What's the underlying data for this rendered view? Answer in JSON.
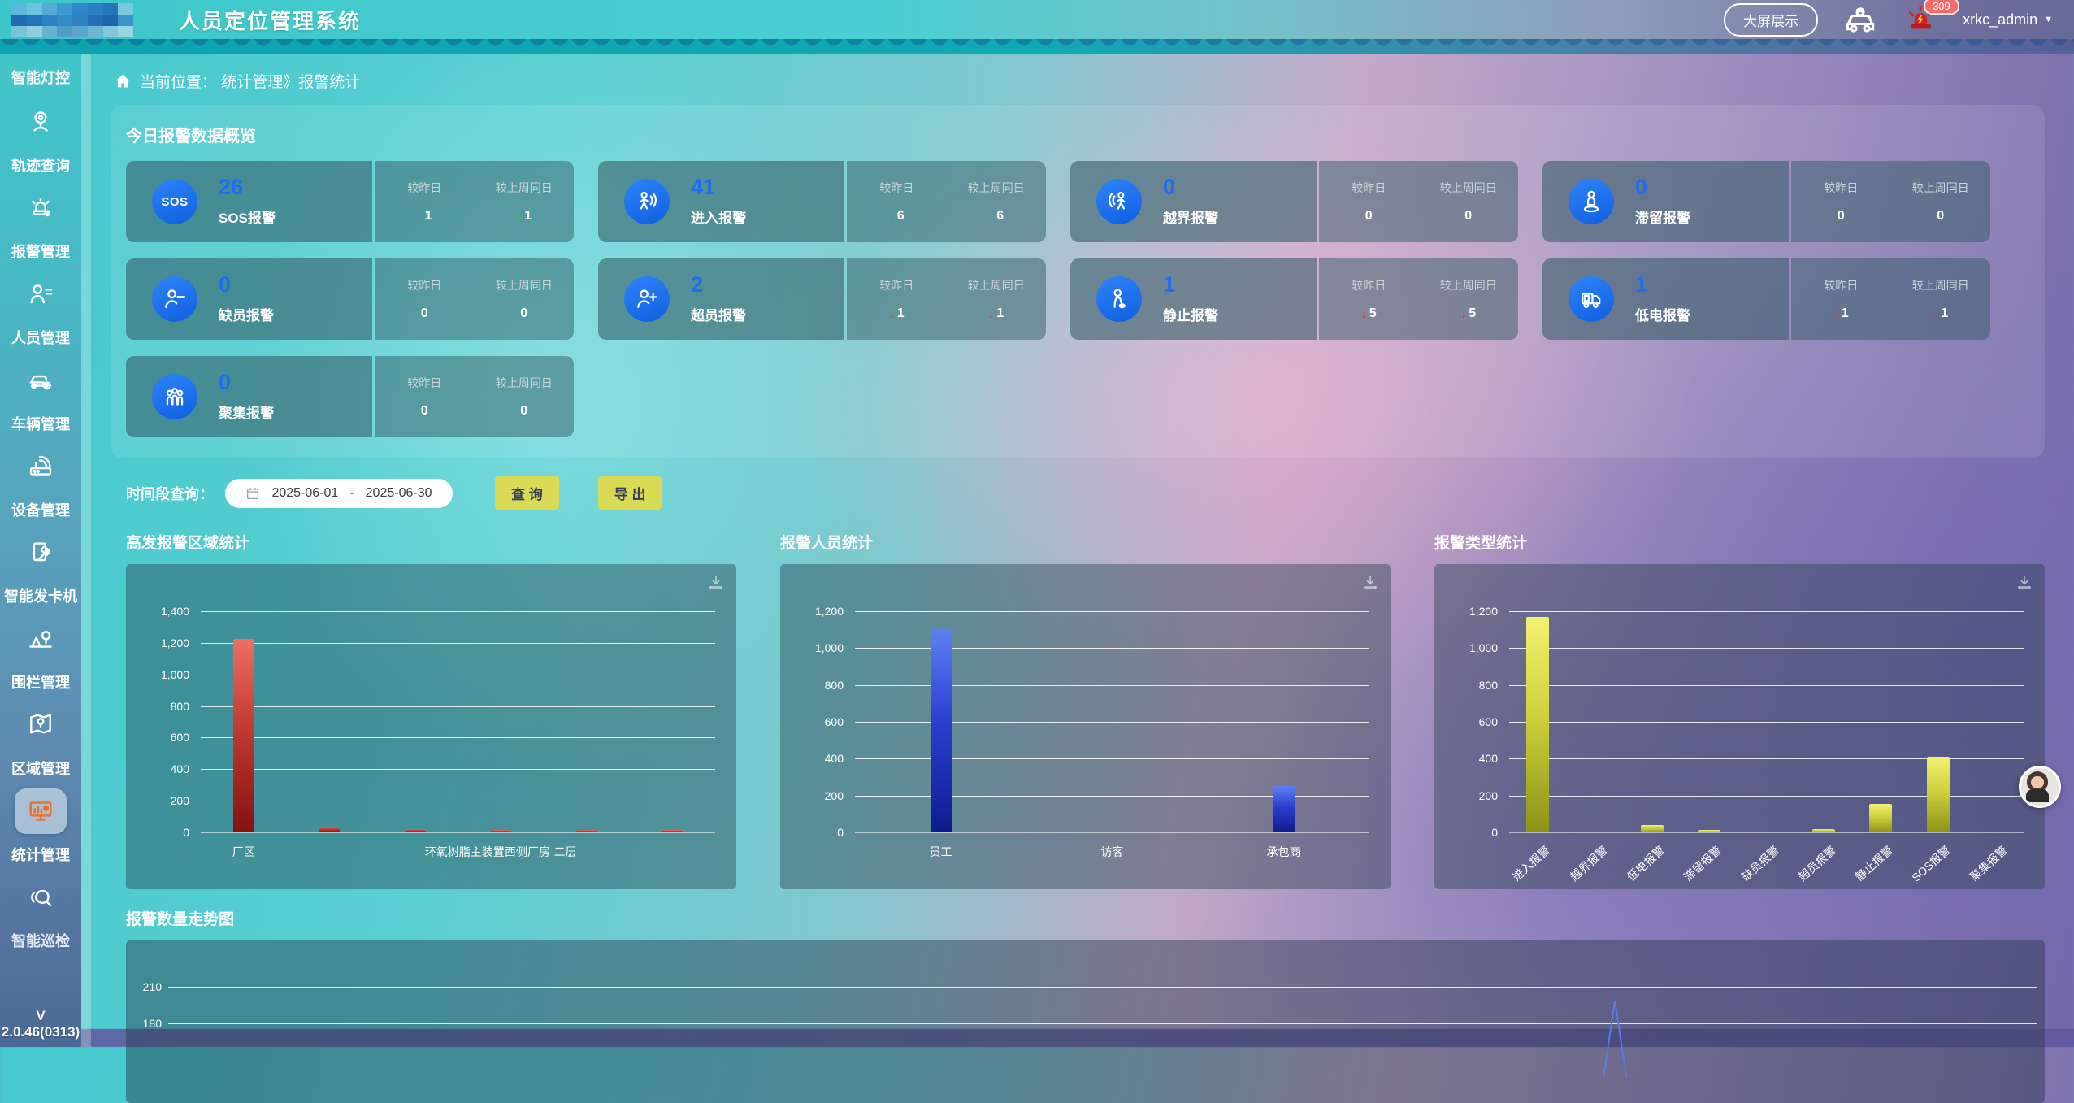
{
  "header": {
    "title": "人员定位管理系统",
    "big_screen_label": "大屏展示",
    "alarm_badge": "309",
    "username": "xrkc_admin",
    "caret": "▼"
  },
  "breadcrumb": {
    "text": "当前位置：  统计管理》报警统计"
  },
  "sidebar": {
    "version": "V 2.0.46(0313)",
    "items": [
      {
        "label": "智能灯控",
        "icon": "light",
        "active": false,
        "icon_visible": false
      },
      {
        "label": "轨迹查询",
        "icon": "track",
        "active": false
      },
      {
        "label": "报警管理",
        "icon": "alarm",
        "active": false
      },
      {
        "label": "人员管理",
        "icon": "person",
        "active": false
      },
      {
        "label": "车辆管理",
        "icon": "vehicle",
        "active": false
      },
      {
        "label": "设备管理",
        "icon": "device",
        "active": false
      },
      {
        "label": "智能发卡机",
        "icon": "card",
        "active": false
      },
      {
        "label": "围栏管理",
        "icon": "fence",
        "active": false
      },
      {
        "label": "区域管理",
        "icon": "region",
        "active": false
      },
      {
        "label": "统计管理",
        "icon": "stats",
        "active": true
      },
      {
        "label": "智能巡检",
        "icon": "patrol",
        "active": false,
        "partial": true
      }
    ]
  },
  "overview": {
    "title": "今日报警数据概览",
    "compare_labels": {
      "yesterday": "较昨日",
      "last_week": "较上周同日"
    },
    "cards": [
      {
        "icon": "sos",
        "value": "26",
        "label": "SOS报警",
        "yesterday": {
          "value": "1",
          "trend": "up"
        },
        "last_week": {
          "value": "1",
          "trend": "up"
        }
      },
      {
        "icon": "enter",
        "value": "41",
        "label": "进入报警",
        "yesterday": {
          "value": "6",
          "trend": "down"
        },
        "last_week": {
          "value": "6",
          "trend": "down"
        }
      },
      {
        "icon": "cross",
        "value": "0",
        "label": "越界报警",
        "yesterday": {
          "value": "0",
          "trend": "none"
        },
        "last_week": {
          "value": "0",
          "trend": "none"
        }
      },
      {
        "icon": "linger",
        "value": "0",
        "label": "滞留报警",
        "yesterday": {
          "value": "0",
          "trend": "none"
        },
        "last_week": {
          "value": "0",
          "trend": "none"
        }
      },
      {
        "icon": "absent",
        "value": "0",
        "label": "缺员报警",
        "yesterday": {
          "value": "0",
          "trend": "none"
        },
        "last_week": {
          "value": "0",
          "trend": "none"
        }
      },
      {
        "icon": "overcrowd",
        "value": "2",
        "label": "超员报警",
        "yesterday": {
          "value": "1",
          "trend": "down"
        },
        "last_week": {
          "value": "1",
          "trend": "down"
        }
      },
      {
        "icon": "still",
        "value": "1",
        "label": "静止报警",
        "yesterday": {
          "value": "5",
          "trend": "down"
        },
        "last_week": {
          "value": "5",
          "trend": "down"
        }
      },
      {
        "icon": "lowbat",
        "value": "1",
        "label": "低电报警",
        "yesterday": {
          "value": "1",
          "trend": "down"
        },
        "last_week": {
          "value": "1",
          "trend": "down"
        }
      },
      {
        "icon": "gather",
        "value": "0",
        "label": "聚集报警",
        "yesterday": {
          "value": "0",
          "trend": "none"
        },
        "last_week": {
          "value": "0",
          "trend": "none"
        }
      }
    ]
  },
  "query": {
    "label": "时间段查询：",
    "start_date": "2025-06-01",
    "separator": "-",
    "end_date": "2025-06-30",
    "search_label": "查 询",
    "export_label": "导 出"
  },
  "chart_data": [
    {
      "type": "bar",
      "title": "高发报警区域统计",
      "categories": [
        "厂区",
        "",
        "",
        "环氧树脂主装置西侧厂房-二层",
        "",
        ""
      ],
      "values": [
        1225,
        35,
        20,
        15,
        10,
        8
      ],
      "ylim": [
        0,
        1400
      ],
      "ytick_step": 200,
      "bar_color": "red",
      "grid": true,
      "legend_position": "none"
    },
    {
      "type": "bar",
      "title": "报警人员统计",
      "categories": [
        "员工",
        "访客",
        "承包商"
      ],
      "values": [
        1100,
        0,
        250
      ],
      "ylim": [
        0,
        1200
      ],
      "ytick_step": 200,
      "bar_color": "blue",
      "grid": true,
      "legend_position": "none"
    },
    {
      "type": "bar",
      "title": "报警类型统计",
      "categories": [
        "进入报警",
        "越界报警",
        "低电报警",
        "滞留报警",
        "缺员报警",
        "超员报警",
        "静止报警",
        "SOS报警",
        "聚集报警"
      ],
      "values": [
        1170,
        0,
        40,
        8,
        0,
        18,
        155,
        410,
        0
      ],
      "ylim": [
        0,
        1200
      ],
      "ytick_step": 200,
      "bar_color": "yellow",
      "grid": true,
      "xlabel_rotate": 42,
      "legend_position": "none"
    },
    {
      "type": "line",
      "title": "报警数量走势图",
      "visible_yticks": [
        210,
        180
      ],
      "spike_x_fraction": 0.776,
      "spike_peak_value": 200,
      "line_color": "#5d79e6",
      "grid": true
    }
  ]
}
